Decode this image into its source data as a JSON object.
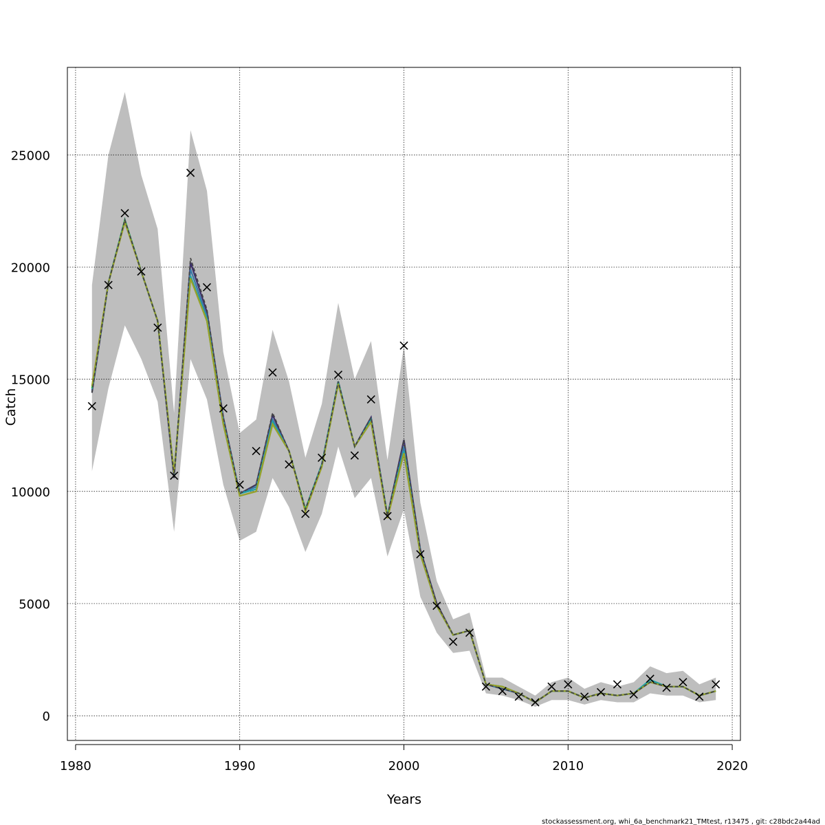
{
  "chart_data": {
    "type": "line",
    "title": "",
    "xlabel": "Years",
    "ylabel": "Catch",
    "xlim": [
      1979.5,
      2020.5
    ],
    "ylim": [
      -1100,
      28900
    ],
    "x_ticks": [
      1980,
      1990,
      2000,
      2010,
      2020
    ],
    "y_ticks": [
      0,
      5000,
      10000,
      15000,
      20000,
      25000
    ],
    "x_tick_labels": [
      "1980",
      "1990",
      "2000",
      "2010",
      "2020"
    ],
    "y_tick_labels": [
      "0",
      "5000",
      "10000",
      "15000",
      "20000",
      "25000"
    ],
    "grid": true,
    "years": [
      1981,
      1982,
      1983,
      1984,
      1985,
      1986,
      1987,
      1988,
      1989,
      1990,
      1991,
      1992,
      1993,
      1994,
      1995,
      1996,
      1997,
      1998,
      1999,
      2000,
      2001,
      2002,
      2003,
      2004,
      2005,
      2006,
      2007,
      2008,
      2009,
      2010,
      2011,
      2012,
      2013,
      2014,
      2015,
      2016,
      2017,
      2018,
      2019
    ],
    "band": {
      "upper": [
        19200,
        25000,
        27800,
        24100,
        21700,
        13500,
        26100,
        23400,
        16200,
        12600,
        13200,
        17200,
        14900,
        11500,
        13900,
        18400,
        15000,
        16700,
        11400,
        16500,
        9500,
        6000,
        4300,
        4600,
        1700,
        1700,
        1300,
        900,
        1500,
        1700,
        1200,
        1500,
        1300,
        1500,
        2200,
        1900,
        2000,
        1400,
        1700
      ],
      "lower": [
        10900,
        14600,
        17400,
        15900,
        14000,
        8200,
        15900,
        14100,
        10300,
        7800,
        8200,
        10600,
        9300,
        7300,
        9000,
        12000,
        9700,
        10600,
        7100,
        9200,
        5300,
        3700,
        2800,
        2900,
        1000,
        900,
        700,
        400,
        700,
        700,
        500,
        700,
        600,
        600,
        1000,
        900,
        900,
        600,
        700
      ]
    },
    "series": [
      {
        "color": "#3b2f6b",
        "dashed": false,
        "values": [
          14400,
          19300,
          22100,
          19800,
          17600,
          10600,
          20200,
          18000,
          13300,
          9900,
          10300,
          13400,
          11800,
          9200,
          11200,
          14900,
          12000,
          13300,
          8900,
          12300,
          7400,
          5000,
          3600,
          3800,
          1400,
          1200,
          1000,
          600,
          1100,
          1100,
          800,
          1000,
          900,
          1000,
          1500,
          1300,
          1300,
          900,
          1100
        ]
      },
      {
        "color": "#3a78a8",
        "dashed": false,
        "values": [
          14500,
          19300,
          22100,
          19800,
          17600,
          10700,
          19900,
          17800,
          13200,
          9900,
          10200,
          13200,
          11800,
          9200,
          11200,
          14900,
          12000,
          13200,
          8900,
          12000,
          7300,
          4900,
          3600,
          3800,
          1400,
          1200,
          1000,
          600,
          1100,
          1100,
          800,
          1000,
          900,
          1000,
          1600,
          1300,
          1300,
          900,
          1100
        ]
      },
      {
        "color": "#1fa3a6",
        "dashed": false,
        "values": [
          14600,
          19300,
          22100,
          19800,
          17600,
          10800,
          19600,
          17700,
          13100,
          9900,
          10100,
          13100,
          11800,
          9200,
          11200,
          14900,
          12000,
          13200,
          8900,
          11800,
          7300,
          4900,
          3600,
          3800,
          1400,
          1300,
          1000,
          600,
          1100,
          1100,
          800,
          1000,
          900,
          1000,
          1600,
          1300,
          1300,
          900,
          1100
        ]
      },
      {
        "color": "#37b34a",
        "dashed": false,
        "values": [
          14600,
          19300,
          22100,
          19800,
          17600,
          10800,
          19500,
          17600,
          13000,
          9800,
          10000,
          13000,
          11800,
          9200,
          11100,
          14800,
          12000,
          13100,
          8900,
          11700,
          7200,
          4900,
          3600,
          3800,
          1400,
          1300,
          1000,
          600,
          1100,
          1100,
          800,
          1000,
          900,
          1000,
          1500,
          1300,
          1300,
          900,
          1100
        ]
      },
      {
        "color": "#9aa02a",
        "dashed": false,
        "values": [
          14700,
          19300,
          22000,
          19800,
          17600,
          10800,
          19500,
          17600,
          13000,
          9800,
          10000,
          13000,
          11800,
          9100,
          11100,
          14800,
          12000,
          13100,
          8800,
          11700,
          7200,
          4900,
          3600,
          3800,
          1400,
          1300,
          1000,
          600,
          1100,
          1100,
          800,
          1000,
          900,
          1000,
          1500,
          1300,
          1300,
          900,
          1100
        ]
      },
      {
        "color": "#444444",
        "dashed": true,
        "values": [
          14400,
          19300,
          22100,
          19800,
          17600,
          10600,
          20400,
          18100,
          13300,
          9900,
          10300,
          13500,
          11800,
          9200,
          11200,
          14900,
          12000,
          13300,
          8900,
          12300,
          7400,
          5000,
          3600,
          3800,
          1400,
          1200,
          1000,
          600,
          1100,
          1100,
          800,
          1000,
          900,
          1000,
          1500,
          1300,
          1300,
          900,
          1100
        ]
      }
    ],
    "observed": [
      13800,
      19200,
      22400,
      19800,
      17300,
      10700,
      24200,
      19100,
      13700,
      10300,
      11800,
      15300,
      11200,
      9000,
      11500,
      15200,
      11600,
      14100,
      8900,
      16500,
      7200,
      4900,
      3300,
      3700,
      1300,
      1100,
      850,
      600,
      1300,
      1400,
      850,
      1050,
      1400,
      950,
      1650,
      1250,
      1500,
      850,
      1400
    ]
  },
  "footer_text": "stockassessment.org, whi_6a_benchmark21_TMtest, r13475 , git: c28bdc2a44ad"
}
